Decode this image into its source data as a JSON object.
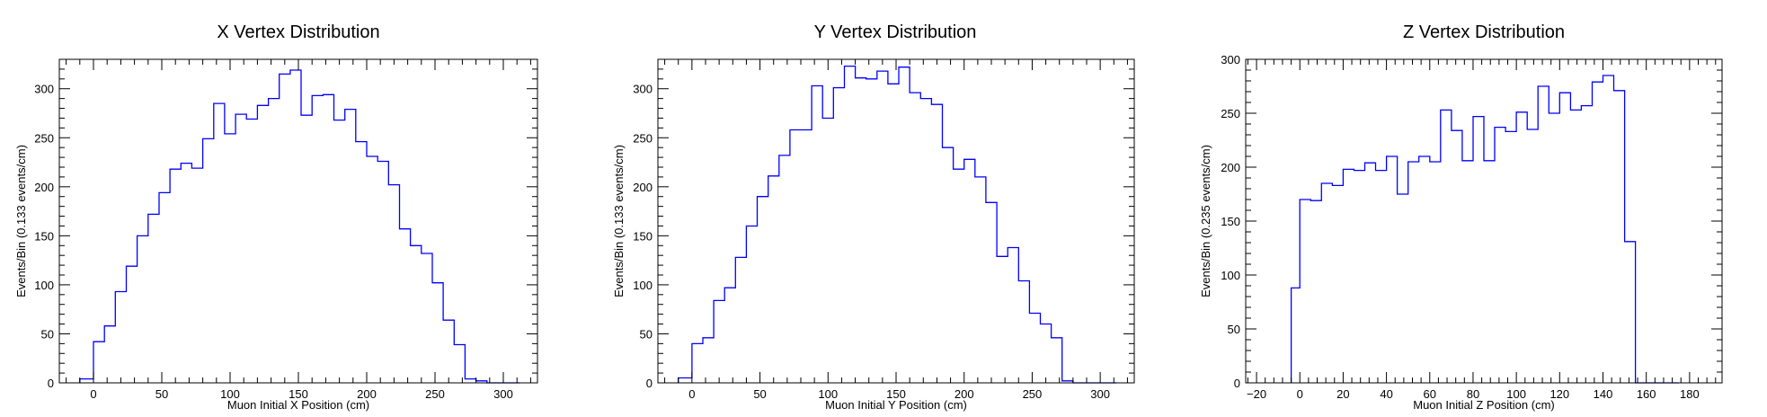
{
  "chart_data": [
    {
      "type": "histogram",
      "title": "X Vertex Distribution",
      "xlabel": "Muon Initial X Position (cm)",
      "ylabel": "Events/Bin (0.133 events/cm)",
      "xlim": [
        -25,
        325
      ],
      "ylim": [
        0,
        330
      ],
      "xticks": [
        0,
        50,
        100,
        150,
        200,
        250,
        300
      ],
      "yticks": [
        0,
        50,
        100,
        150,
        200,
        250,
        300
      ],
      "grid": false,
      "color": "#0000ff",
      "series": [
        {
          "bin_edges": [
            -10,
            0,
            8,
            16,
            24,
            32,
            40,
            48,
            56,
            64,
            72,
            80,
            88,
            96,
            104,
            112,
            120,
            128,
            136,
            144,
            152,
            160,
            168,
            176,
            184,
            192,
            200,
            208,
            216,
            224,
            232,
            240,
            248,
            256,
            264,
            272,
            280,
            288,
            296,
            304,
            312
          ],
          "values": [
            4,
            42,
            58,
            93,
            119,
            150,
            172,
            194,
            218,
            224,
            219,
            249,
            285,
            254,
            274,
            269,
            283,
            290,
            315,
            319,
            273,
            293,
            294,
            268,
            279,
            246,
            231,
            226,
            202,
            157,
            140,
            132,
            102,
            64,
            39,
            4,
            2,
            0,
            0,
            0
          ]
        }
      ]
    },
    {
      "type": "histogram",
      "title": "Y Vertex Distribution",
      "xlabel": "Muon Initial Y Position (cm)",
      "ylabel": "Events/Bin (0.133 events/cm)",
      "xlim": [
        -25,
        325
      ],
      "ylim": [
        0,
        330
      ],
      "xticks": [
        0,
        50,
        100,
        150,
        200,
        250,
        300
      ],
      "yticks": [
        0,
        50,
        100,
        150,
        200,
        250,
        300
      ],
      "grid": false,
      "color": "#0000ff",
      "series": [
        {
          "bin_edges": [
            -10,
            0,
            8,
            16,
            24,
            32,
            40,
            48,
            56,
            64,
            72,
            80,
            88,
            96,
            104,
            112,
            120,
            128,
            136,
            144,
            152,
            160,
            168,
            176,
            184,
            192,
            200,
            208,
            216,
            224,
            232,
            240,
            248,
            256,
            264,
            272,
            280,
            288,
            296,
            304,
            312
          ],
          "values": [
            5,
            40,
            46,
            84,
            97,
            128,
            160,
            190,
            211,
            232,
            258,
            258,
            303,
            270,
            301,
            323,
            311,
            310,
            318,
            305,
            322,
            296,
            290,
            284,
            240,
            218,
            228,
            210,
            184,
            129,
            138,
            104,
            71,
            60,
            46,
            2,
            0,
            0,
            0,
            0
          ]
        }
      ]
    },
    {
      "type": "histogram",
      "title": "Z Vertex Distribution",
      "xlabel": "Muon Initial Z Position (cm)",
      "ylabel": "Events/Bin (0.235 events/cm)",
      "xlim": [
        -25,
        195
      ],
      "ylim": [
        0,
        300
      ],
      "xticks": [
        -20,
        0,
        20,
        40,
        60,
        80,
        100,
        120,
        140,
        160,
        180
      ],
      "yticks": [
        0,
        50,
        100,
        150,
        200,
        250,
        300
      ],
      "grid": false,
      "color": "#0000ff",
      "series": [
        {
          "bin_edges": [
            -4,
            0,
            5,
            10,
            15,
            20,
            25,
            30,
            35,
            40,
            45,
            50,
            55,
            60,
            65,
            70,
            75,
            80,
            85,
            90,
            95,
            100,
            105,
            110,
            115,
            120,
            125,
            130,
            135,
            140,
            145,
            150,
            155,
            160,
            165,
            170,
            175
          ],
          "values": [
            88,
            170,
            169,
            185,
            183,
            198,
            197,
            204,
            197,
            210,
            175,
            205,
            210,
            205,
            253,
            234,
            206,
            247,
            206,
            237,
            233,
            251,
            235,
            275,
            250,
            269,
            253,
            257,
            279,
            285,
            271,
            131,
            0,
            0,
            0,
            0
          ]
        }
      ]
    }
  ]
}
